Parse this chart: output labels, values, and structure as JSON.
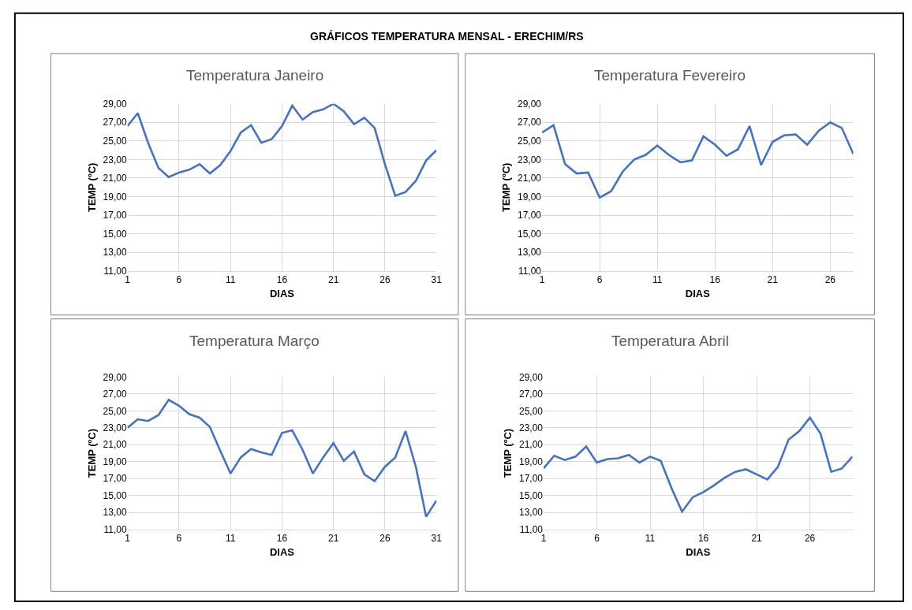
{
  "chart_data": [
    {
      "type": "line",
      "title": "Temperatura Janeiro",
      "xlabel": "DIAS",
      "ylabel": "TEMP (ºC)",
      "annotations": [
        "GRÁFICOS TEMPERATURA MENSAL - ERECHIM/RS"
      ],
      "grid": true,
      "x": [
        1,
        2,
        3,
        4,
        5,
        6,
        7,
        8,
        9,
        10,
        11,
        12,
        13,
        14,
        15,
        16,
        17,
        18,
        19,
        20,
        21,
        22,
        23,
        24,
        25,
        26,
        27,
        28,
        29,
        30,
        31
      ],
      "series": [
        {
          "color": "#4472c4",
          "values": [
            26.6,
            28.0,
            24.8,
            22.1,
            21.1,
            21.6,
            21.9,
            22.5,
            21.5,
            22.4,
            23.9,
            25.9,
            26.7,
            24.8,
            25.2,
            26.6,
            28.8,
            27.3,
            28.1,
            28.4,
            29.0,
            28.2,
            26.8,
            27.5,
            26.4,
            22.5,
            19.1,
            19.5,
            20.7,
            22.9,
            24.0
          ]
        }
      ],
      "xlim": [
        1,
        31
      ],
      "xticks": [
        1,
        6,
        11,
        16,
        21,
        26,
        31
      ],
      "ylim": [
        11,
        29
      ],
      "yticks": [
        {
          "value": 11,
          "label": "11,00"
        },
        {
          "value": 13,
          "label": "13,00"
        },
        {
          "value": 15,
          "label": "15,00"
        },
        {
          "value": 17,
          "label": "17,00"
        },
        {
          "value": 19,
          "label": "19,00"
        },
        {
          "value": 21,
          "label": "21,00"
        },
        {
          "value": 23,
          "label": "23,00"
        },
        {
          "value": 25,
          "label": "25,00"
        },
        {
          "value": 27,
          "label": "27,00"
        },
        {
          "value": 29,
          "label": "29,00"
        }
      ]
    },
    {
      "type": "line",
      "title": "Temperatura Fevereiro",
      "xlabel": "DIAS",
      "ylabel": "TEMP (ºC)",
      "grid": true,
      "x": [
        1,
        2,
        3,
        4,
        5,
        6,
        7,
        8,
        9,
        10,
        11,
        12,
        13,
        14,
        15,
        16,
        17,
        18,
        19,
        20,
        21,
        22,
        23,
        24,
        25,
        26,
        27,
        28
      ],
      "series": [
        {
          "color": "#4472c4",
          "values": [
            25.9,
            26.7,
            22.5,
            21.5,
            21.6,
            18.9,
            19.6,
            21.7,
            23.0,
            23.5,
            24.5,
            23.5,
            22.7,
            22.9,
            25.5,
            24.6,
            23.4,
            24.1,
            26.6,
            22.4,
            24.9,
            25.6,
            25.7,
            24.6,
            26.1,
            27.0,
            26.4,
            23.6
          ]
        }
      ],
      "xlim": [
        1,
        28
      ],
      "xticks": [
        1,
        6,
        11,
        16,
        21,
        26
      ],
      "ylim": [
        11,
        29
      ],
      "yticks": [
        {
          "value": 11,
          "label": "11,00"
        },
        {
          "value": 13,
          "label": "13,00"
        },
        {
          "value": 15,
          "label": "15,00"
        },
        {
          "value": 17,
          "label": "17,00"
        },
        {
          "value": 19,
          "label": "19,00"
        },
        {
          "value": 21,
          "label": "21,00"
        },
        {
          "value": 23,
          "label": "23,00"
        },
        {
          "value": 25,
          "label": "25,00"
        },
        {
          "value": 27,
          "label": "27,00"
        },
        {
          "value": 29,
          "label": "29,00"
        }
      ]
    },
    {
      "type": "line",
      "title": "Temperatura Março",
      "xlabel": "DIAS",
      "ylabel": "TEMP (ºC)",
      "grid": true,
      "x": [
        1,
        2,
        3,
        4,
        5,
        6,
        7,
        8,
        9,
        10,
        11,
        12,
        13,
        14,
        15,
        16,
        17,
        18,
        19,
        20,
        21,
        22,
        23,
        24,
        25,
        26,
        27,
        28,
        29,
        30,
        31
      ],
      "series": [
        {
          "color": "#4472c4",
          "values": [
            23.0,
            24.0,
            23.8,
            24.5,
            26.3,
            25.6,
            24.6,
            24.2,
            23.1,
            20.3,
            17.6,
            19.5,
            20.5,
            20.1,
            19.8,
            22.4,
            22.7,
            20.4,
            17.6,
            19.5,
            21.2,
            19.1,
            20.2,
            17.5,
            16.7,
            18.4,
            19.5,
            22.6,
            18.4,
            12.5,
            14.4
          ]
        }
      ],
      "xlim": [
        1,
        31
      ],
      "xticks": [
        1,
        6,
        11,
        16,
        21,
        26,
        31
      ],
      "ylim": [
        11,
        29
      ],
      "yticks": [
        {
          "value": 11,
          "label": "11,00"
        },
        {
          "value": 13,
          "label": "13,00"
        },
        {
          "value": 15,
          "label": "15,00"
        },
        {
          "value": 17,
          "label": "17,00"
        },
        {
          "value": 19,
          "label": "19,00"
        },
        {
          "value": 21,
          "label": "21,00"
        },
        {
          "value": 23,
          "label": "23,00"
        },
        {
          "value": 25,
          "label": "25,00"
        },
        {
          "value": 27,
          "label": "27,00"
        },
        {
          "value": 29,
          "label": "29,00"
        }
      ]
    },
    {
      "type": "line",
      "title": "Temperatura Abril",
      "xlabel": "DIAS",
      "ylabel": "TEMP (ºC)",
      "grid": true,
      "x": [
        1,
        2,
        3,
        4,
        5,
        6,
        7,
        8,
        9,
        10,
        11,
        12,
        13,
        14,
        15,
        16,
        17,
        18,
        19,
        20,
        21,
        22,
        23,
        24,
        25,
        26,
        27,
        28,
        29,
        30
      ],
      "series": [
        {
          "color": "#4472c4",
          "values": [
            18.2,
            19.7,
            19.2,
            19.6,
            20.8,
            18.9,
            19.3,
            19.4,
            19.8,
            18.9,
            19.6,
            19.1,
            15.9,
            13.1,
            14.8,
            15.4,
            16.2,
            17.1,
            17.8,
            18.1,
            17.5,
            16.9,
            18.4,
            21.6,
            22.6,
            24.2,
            22.3,
            17.8,
            18.2,
            19.6
          ]
        }
      ],
      "xlim": [
        1,
        30
      ],
      "xticks": [
        1,
        6,
        11,
        16,
        21,
        26
      ],
      "ylim": [
        11,
        29
      ],
      "yticks": [
        {
          "value": 11,
          "label": "11,00"
        },
        {
          "value": 13,
          "label": "13,00"
        },
        {
          "value": 15,
          "label": "15,00"
        },
        {
          "value": 17,
          "label": "17,00"
        },
        {
          "value": 19,
          "label": "19,00"
        },
        {
          "value": 21,
          "label": "21,00"
        },
        {
          "value": 23,
          "label": "23,00"
        },
        {
          "value": 25,
          "label": "25,00"
        },
        {
          "value": 27,
          "label": "27,00"
        },
        {
          "value": 29,
          "label": "29,00"
        }
      ]
    }
  ]
}
